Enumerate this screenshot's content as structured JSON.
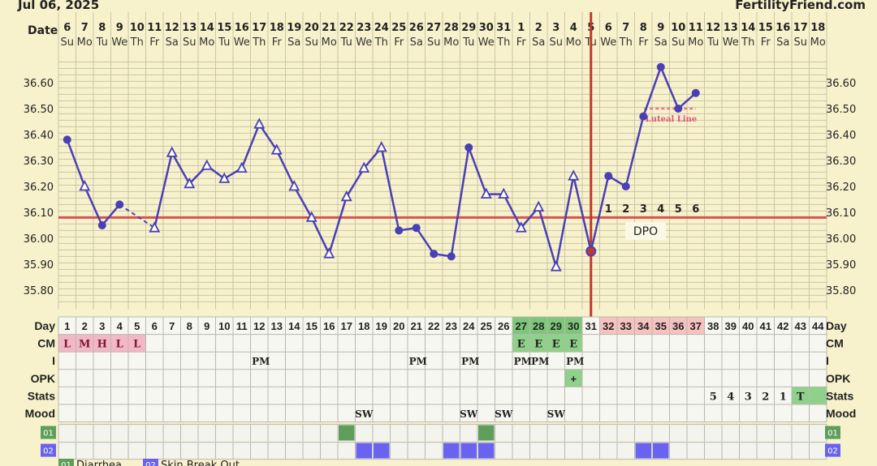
{
  "header": {
    "date_label": "Jul 06, 2025",
    "site_name": "FertilityFriend.com",
    "row_label_date": "Date"
  },
  "dates": [
    "6",
    "7",
    "8",
    "9",
    "10",
    "11",
    "12",
    "13",
    "14",
    "15",
    "16",
    "17",
    "18",
    "19",
    "20",
    "21",
    "22",
    "23",
    "24",
    "25",
    "26",
    "27",
    "28",
    "29",
    "30",
    "31",
    "1",
    "2",
    "3",
    "4",
    "5",
    "6",
    "7",
    "8",
    "9",
    "10",
    "11",
    "12",
    "13",
    "14",
    "15",
    "16",
    "17",
    "18"
  ],
  "weekdays": [
    "Su",
    "Mo",
    "Tu",
    "We",
    "Th",
    "Fr",
    "Sa",
    "Su",
    "Mo",
    "Tu",
    "We",
    "Th",
    "Fr",
    "Sa",
    "Su",
    "Mo",
    "Tu",
    "We",
    "Th",
    "Fr",
    "Sa",
    "Su",
    "Mo",
    "Tu",
    "We",
    "Th",
    "Fr",
    "Sa",
    "Su",
    "Mo",
    "Tu",
    "We",
    "Th",
    "Fr",
    "Sa",
    "Su",
    "Mo",
    "Tu",
    "We",
    "Th",
    "Fr",
    "Sa",
    "Su",
    "Mo"
  ],
  "chart_data": {
    "type": "line",
    "series": [
      {
        "values": [
          36.38,
          36.2,
          36.05,
          36.13,
          null,
          36.04,
          36.33,
          36.21,
          36.28,
          36.23,
          36.27,
          36.44,
          36.34,
          36.2,
          36.08,
          35.94,
          36.16,
          36.27,
          36.35,
          36.03,
          36.04,
          35.94,
          35.93,
          36.35,
          36.17,
          36.17,
          36.04,
          36.12,
          35.89,
          36.24,
          35.95,
          36.24,
          36.2,
          36.47,
          36.66,
          36.5,
          36.56
        ]
      }
    ],
    "markers": [
      "circle",
      "triangle",
      "circle",
      "circle",
      "none",
      "triangle",
      "triangle",
      "triangle",
      "triangle",
      "triangle",
      "triangle",
      "triangle",
      "triangle",
      "triangle",
      "triangle",
      "triangle",
      "triangle",
      "triangle",
      "triangle",
      "circle",
      "circle",
      "circle",
      "circle",
      "circle",
      "triangle",
      "triangle",
      "triangle",
      "triangle",
      "triangle",
      "triangle",
      "circle",
      "circle",
      "circle",
      "circle",
      "circle",
      "circle",
      "circle"
    ],
    "y_ticks": [
      "36.60",
      "36.50",
      "36.40",
      "36.30",
      "36.20",
      "36.10",
      "36.00",
      "35.90",
      "35.80"
    ],
    "ylim": [
      35.75,
      36.7
    ],
    "coverline": 36.08,
    "ovulation_day": 31,
    "luteal_line": {
      "value": 36.5,
      "start_day": 34,
      "end_day": 37,
      "label": "Luteal Line"
    },
    "dpo_numbers": [
      "1",
      "2",
      "3",
      "4",
      "5",
      "6"
    ],
    "dpo_label": "DPO",
    "line_color": "#4a3fb5",
    "coverline_color": "#d9534f",
    "ovulation_color": "#c0392b",
    "grid": true
  },
  "rows": {
    "day_label": "Day",
    "cm_label": "CM",
    "i_label": "I",
    "opk_label": "OPK",
    "stats_label": "Stats",
    "mood_label": "Mood",
    "days": [
      "1",
      "2",
      "3",
      "4",
      "5",
      "6",
      "7",
      "8",
      "9",
      "10",
      "11",
      "12",
      "13",
      "14",
      "15",
      "16",
      "17",
      "18",
      "19",
      "20",
      "21",
      "22",
      "23",
      "24",
      "25",
      "26",
      "27",
      "28",
      "29",
      "30",
      "31",
      "32",
      "33",
      "34",
      "35",
      "36",
      "37",
      "38",
      "39",
      "40",
      "41",
      "42",
      "43",
      "44"
    ],
    "cm": [
      "L",
      "M",
      "H",
      "L",
      "L",
      "",
      "",
      "",
      "",
      "",
      "",
      "",
      "",
      "",
      "",
      "",
      "",
      "",
      "",
      "",
      "",
      "",
      "",
      "",
      "",
      "",
      "E",
      "E",
      "E",
      "E",
      "",
      "",
      "",
      "",
      "",
      "",
      "",
      "",
      "",
      "",
      "",
      "",
      "",
      ""
    ],
    "intercourse": [
      "",
      "",
      "",
      "",
      "",
      "",
      "",
      "",
      "",
      "",
      "",
      "PM",
      "",
      "",
      "",
      "",
      "",
      "",
      "",
      "",
      "PM",
      "",
      "",
      "PM",
      "",
      "",
      "PM",
      "PM",
      "",
      "PM",
      "",
      "",
      "",
      "",
      "",
      "",
      "",
      "",
      "",
      "",
      "",
      "",
      "",
      ""
    ],
    "opk": [
      "",
      "",
      "",
      "",
      "",
      "",
      "",
      "",
      "",
      "",
      "",
      "",
      "",
      "",
      "",
      "",
      "",
      "",
      "",
      "",
      "",
      "",
      "",
      "",
      "",
      "",
      "",
      "",
      "",
      "+",
      "",
      "",
      "",
      "",
      "",
      "",
      "",
      "",
      "",
      "",
      "",
      "",
      "",
      ""
    ],
    "stats": [
      "",
      "",
      "",
      "",
      "",
      "",
      "",
      "",
      "",
      "",
      "",
      "",
      "",
      "",
      "",
      "",
      "",
      "",
      "",
      "",
      "",
      "",
      "",
      "",
      "",
      "",
      "",
      "",
      "",
      "",
      "",
      "",
      "",
      "",
      "",
      "",
      "",
      "5",
      "4",
      "3",
      "2",
      "1",
      "T",
      ""
    ],
    "mood": [
      "",
      "",
      "",
      "",
      "",
      "",
      "",
      "",
      "",
      "",
      "",
      "",
      "",
      "",
      "",
      "",
      "",
      "SW",
      "",
      "",
      "",
      "",
      "",
      "SW",
      "",
      "SW",
      "",
      "",
      "SW",
      "",
      "",
      "",
      "",
      "",
      "",
      "",
      "",
      "",
      "",
      "",
      "",
      "",
      "",
      ""
    ],
    "symptom01_label": "01",
    "symptom02_label": "02",
    "symptom01_days": [
      17,
      25
    ],
    "symptom02_days": [
      18,
      19,
      23,
      24,
      25,
      34,
      35
    ]
  },
  "legend": {
    "item1_code": "01",
    "item1_text": "Diarrhea",
    "item2_code": "02",
    "item2_text": "Skin Break Out"
  },
  "colors": {
    "background": "#f7f2cc",
    "grid": "#c9c6a8",
    "cm_pink": "#f2b8c6",
    "cm_green": "#8fd18a",
    "day_green": "#7ec77a",
    "day_post_ov": "#f6c2c0",
    "symptom01": "#5f9e5a",
    "symptom02": "#6a63f0"
  }
}
